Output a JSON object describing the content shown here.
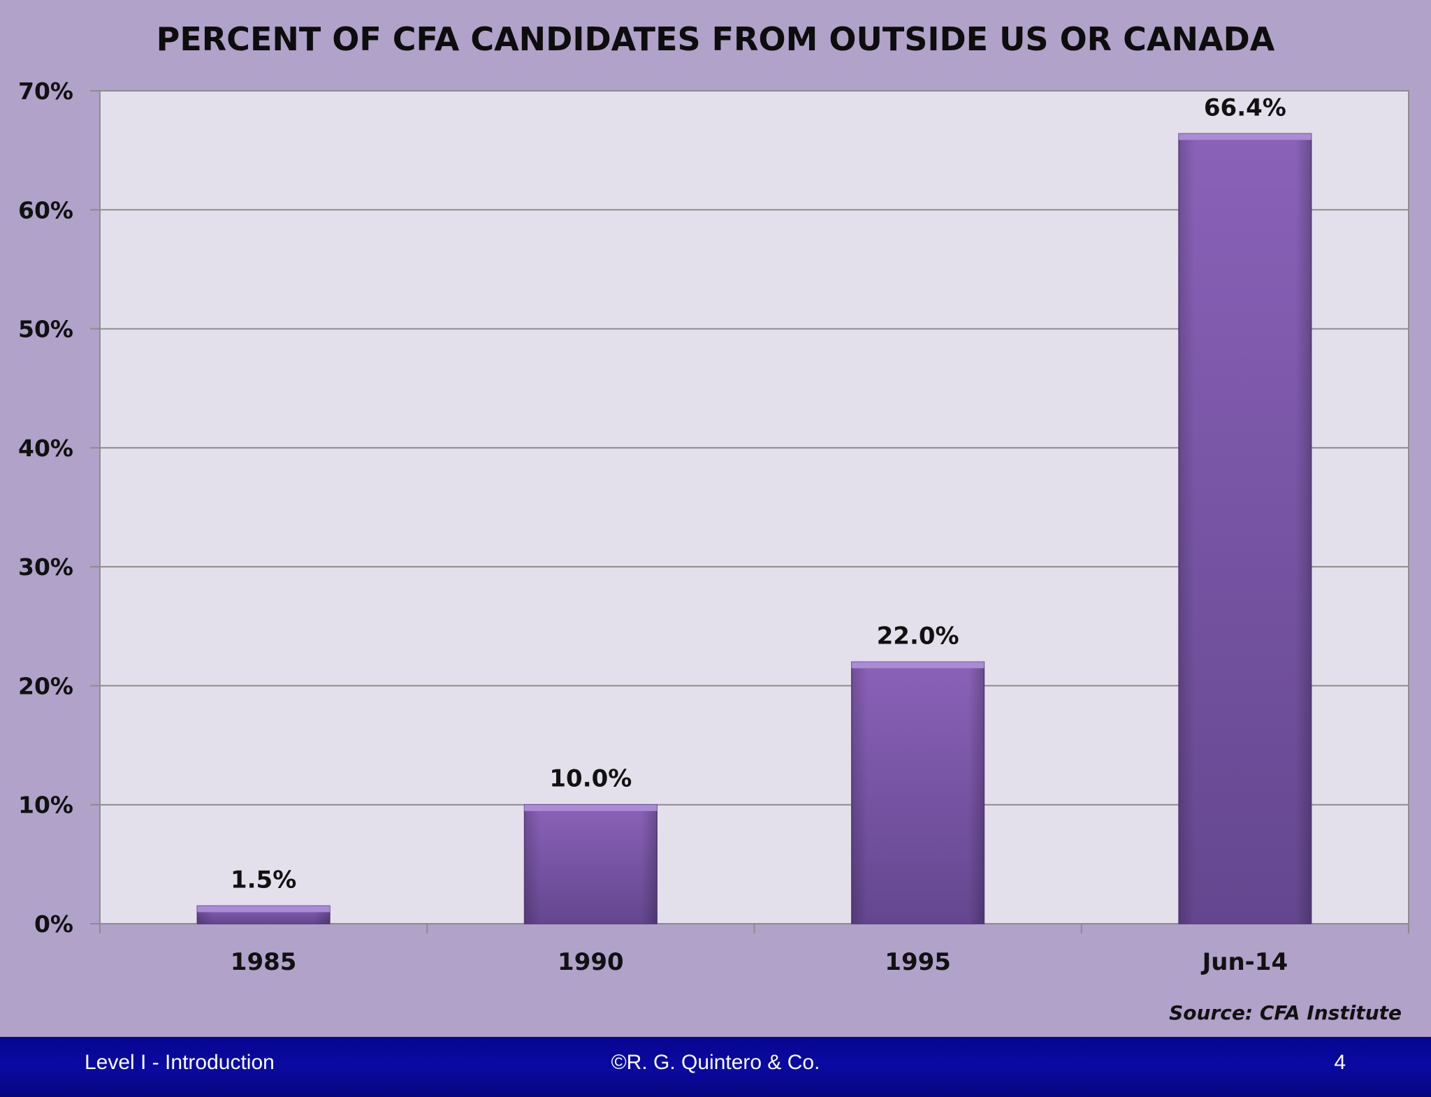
{
  "chart_data": {
    "type": "bar",
    "title": "PERCENT OF CFA CANDIDATES FROM OUTSIDE US OR CANADA",
    "categories": [
      "1985",
      "1990",
      "1995",
      "Jun-14"
    ],
    "values": [
      1.5,
      10.0,
      22.0,
      66.4
    ],
    "value_labels": [
      "1.5%",
      "10.0%",
      "22.0%",
      "66.4%"
    ],
    "ylim": [
      0,
      70
    ],
    "yticks": [
      0,
      10,
      20,
      30,
      40,
      50,
      60,
      70
    ],
    "ytick_labels": [
      "0%",
      "10%",
      "20%",
      "30%",
      "40%",
      "50%",
      "60%",
      "70%"
    ],
    "xlabel": "",
    "ylabel": "",
    "grid": true,
    "source": "Source:  CFA Institute",
    "colors": {
      "bar": "#7b58a6",
      "bar_top": "#a98bd6",
      "plot_bg": "#e4e0eb",
      "page_bg": "#b1a2c9"
    }
  },
  "footer": {
    "left": "Level I - Introduction",
    "center": "©R. G. Quintero & Co.",
    "right": "4"
  }
}
